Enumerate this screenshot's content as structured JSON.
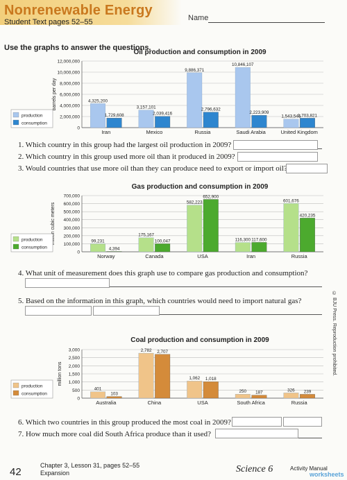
{
  "header": {
    "title": "Nonrenewable Energy",
    "subtitle": "Student Text pages 52–55",
    "name_label": "Name"
  },
  "instructions": "Use the graphs to answer the questions.",
  "legend": {
    "production": "production",
    "consumption": "consumption"
  },
  "colors": {
    "oil_production": "#a9c7ee",
    "oil_consumption": "#2e86cf",
    "gas_production": "#b5e08a",
    "gas_consumption": "#4caa2e",
    "coal_production": "#f0c489",
    "coal_consumption": "#d48b3a"
  },
  "chart_data": [
    {
      "type": "bar",
      "title": "Oil production and consumption in 2009",
      "ylabel": "barrels per day",
      "categories": [
        "Iran",
        "Mexico",
        "Russia",
        "Saudi Arabia",
        "United Kingdom"
      ],
      "series": [
        {
          "name": "production",
          "values": [
            4325200,
            3157101,
            9886371,
            10846107,
            1543546
          ]
        },
        {
          "name": "consumption",
          "values": [
            1729608,
            2039416,
            2796632,
            2223909,
            1703821
          ]
        }
      ],
      "value_labels": {
        "production": [
          "4,325,200",
          "3,157,101",
          "9,886,371",
          "10,846,107",
          "1,543,546"
        ],
        "consumption": [
          "1,729,608",
          "2,039,416",
          "2,796,632",
          "2,223,909",
          "1,703,821"
        ]
      },
      "yticks": [
        "0",
        "2,000,000",
        "4,000,000",
        "6,000,000",
        "8,000,000",
        "10,000,000",
        "12,000,000"
      ],
      "ylim": [
        0,
        12000000
      ]
    },
    {
      "type": "bar",
      "title": "Gas production and consumption in 2009",
      "ylabel": "million cubic meters",
      "categories": [
        "Norway",
        "Canada",
        "USA",
        "Iran",
        "Russia"
      ],
      "series": [
        {
          "name": "production",
          "values": [
            99231,
            175167,
            582223,
            116300,
            601676
          ]
        },
        {
          "name": "consumption",
          "values": [
            4394,
            100047,
            652900,
            117600,
            420235
          ]
        }
      ],
      "value_labels": {
        "production": [
          "99,231",
          "175,167",
          "582,223",
          "116,300",
          "601,676"
        ],
        "consumption": [
          "4,394",
          "100,047",
          "652,900",
          "117,600",
          "420,235"
        ]
      },
      "yticks": [
        "0",
        "100,000",
        "200,000",
        "300,000",
        "400,000",
        "500,000",
        "600,000",
        "700,000"
      ],
      "ylim": [
        0,
        700000
      ]
    },
    {
      "type": "bar",
      "title": "Coal production and consumption in 2009",
      "ylabel": "million tons",
      "categories": [
        "Australia",
        "China",
        "USA",
        "South Africa",
        "Russia"
      ],
      "series": [
        {
          "name": "production",
          "values": [
            401,
            2782,
            1062,
            250,
            326
          ]
        },
        {
          "name": "consumption",
          "values": [
            103,
            2707,
            1018,
            187,
            239
          ]
        }
      ],
      "value_labels": {
        "production": [
          "401",
          "2,782",
          "1,062",
          "250",
          "326"
        ],
        "consumption": [
          "103",
          "2,707",
          "1,018",
          "187",
          "239"
        ]
      },
      "yticks": [
        "0",
        "500",
        "1,000",
        "1,500",
        "2,000",
        "2,500",
        "3,000"
      ],
      "ylim": [
        0,
        3000
      ]
    }
  ],
  "questions": [
    {
      "text": "1. Which country in this group had the largest oil production in 2009?"
    },
    {
      "text": "2. Which country in this group used more oil than it produced in 2009?"
    },
    {
      "text": "3. Would countries that use more oil than they can produce need to export or import oil?"
    },
    {
      "text": "4. What unit of measurement does this graph use to compare gas production and consumption?"
    },
    {
      "text": "5. Based on the information in this graph, which countries would need to import natural gas?"
    },
    {
      "text": "6. Which two countries in this group produced the most coal in 2009?"
    },
    {
      "text": "7. How much more coal did South Africa produce than it used?"
    }
  ],
  "footer": {
    "page_number": "42",
    "line1": "Chapter 3, Lesson 31, pages 52–55",
    "line2": "Expansion",
    "brand": "Science 6",
    "brand2": "Activity Manual",
    "watermark": "worksheets"
  },
  "copyright": "© BJU Press. Reproduction prohibited."
}
